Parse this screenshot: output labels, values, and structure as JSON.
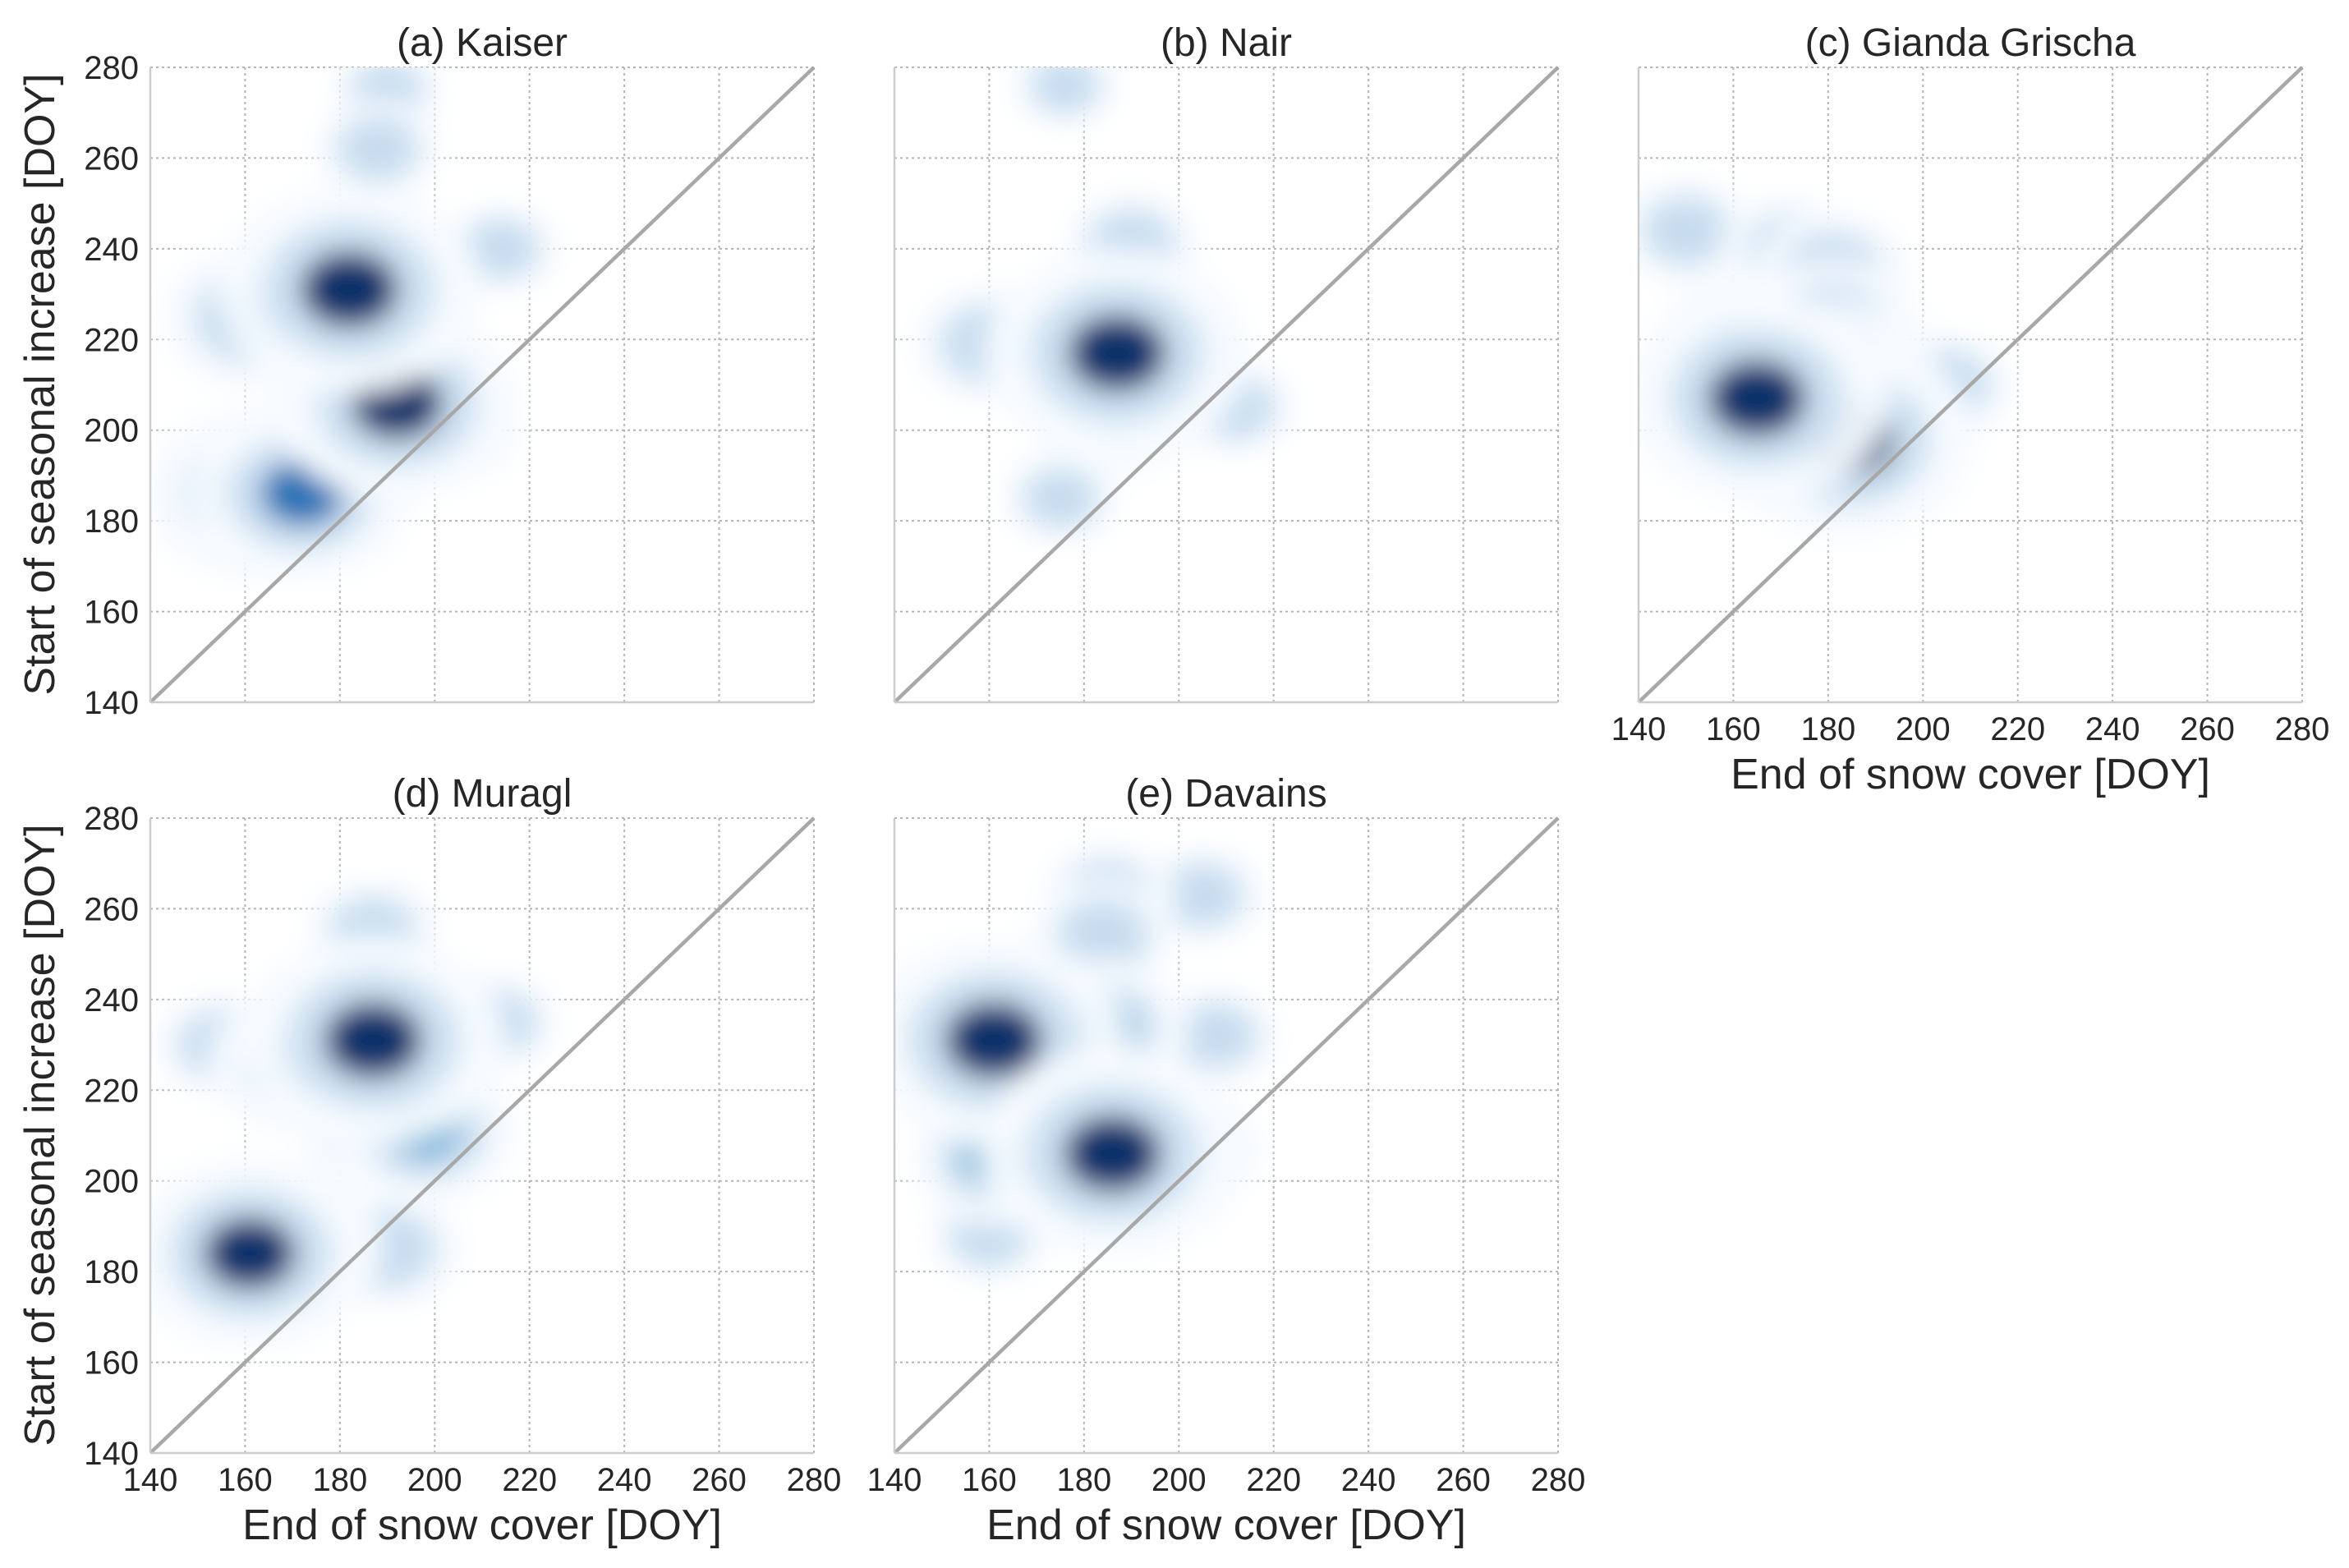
{
  "figure": {
    "x_label": "End of snow cover [DOY]",
    "y_label": "Start of seasonal increase [DOY]",
    "colormap": [
      "#f7fbff",
      "#c6dbef",
      "#6baed6",
      "#2171b5",
      "#08306b"
    ]
  },
  "chart_data": [
    {
      "type": "heatmap",
      "title": "(a) Kaiser",
      "xlabel": "End of snow cover [DOY]",
      "ylabel": "Start of seasonal increase [DOY]",
      "xlim": [
        140,
        280
      ],
      "ylim": [
        140,
        280
      ],
      "xticks": [
        140,
        160,
        180,
        200,
        220,
        240,
        260,
        280
      ],
      "yticks": [
        140,
        160,
        180,
        200,
        220,
        240,
        260,
        280
      ],
      "grid": true,
      "reference_line": "1:1",
      "density_blobs": [
        {
          "x": 182,
          "y": 231,
          "w": 1.0
        },
        {
          "x": 192,
          "y": 206,
          "w": 0.9
        },
        {
          "x": 162,
          "y": 186,
          "w": 0.75
        },
        {
          "x": 172,
          "y": 186,
          "w": 0.75
        },
        {
          "x": 162,
          "y": 225,
          "w": 0.55
        },
        {
          "x": 190,
          "y": 230,
          "w": 0.35
        },
        {
          "x": 188,
          "y": 262,
          "w": 0.2
        },
        {
          "x": 205,
          "y": 200,
          "w": 0.2
        },
        {
          "x": 214,
          "y": 240,
          "w": 0.15
        },
        {
          "x": 190,
          "y": 275,
          "w": 0.12
        }
      ]
    },
    {
      "type": "heatmap",
      "title": "(b) Nair",
      "xlabel": "End of snow cover [DOY]",
      "ylabel": "Start of seasonal increase [DOY]",
      "xlim": [
        140,
        280
      ],
      "ylim": [
        140,
        280
      ],
      "xticks": [
        140,
        160,
        180,
        200,
        220,
        240,
        260,
        280
      ],
      "yticks": [
        140,
        160,
        180,
        200,
        220,
        240,
        260,
        280
      ],
      "grid": true,
      "reference_line": "1:1",
      "density_blobs": [
        {
          "x": 187,
          "y": 217,
          "w": 1.0
        },
        {
          "x": 187,
          "y": 207,
          "w": 0.6
        },
        {
          "x": 160,
          "y": 219,
          "w": 0.35
        },
        {
          "x": 200,
          "y": 218,
          "w": 0.3
        },
        {
          "x": 190,
          "y": 241,
          "w": 0.25
        },
        {
          "x": 212,
          "y": 205,
          "w": 0.18
        },
        {
          "x": 175,
          "y": 185,
          "w": 0.15
        },
        {
          "x": 176,
          "y": 276,
          "w": 0.1
        }
      ]
    },
    {
      "type": "heatmap",
      "title": "(c) Gianda Grischa",
      "xlabel": "End of snow cover [DOY]",
      "ylabel": "Start of seasonal increase [DOY]",
      "xlim": [
        140,
        280
      ],
      "ylim": [
        140,
        280
      ],
      "xticks": [
        140,
        160,
        180,
        200,
        220,
        240,
        260,
        280
      ],
      "yticks": [
        140,
        160,
        180,
        200,
        220,
        240,
        260,
        280
      ],
      "grid": true,
      "reference_line": "1:1",
      "density_blobs": [
        {
          "x": 165,
          "y": 207,
          "w": 1.0
        },
        {
          "x": 184,
          "y": 198,
          "w": 0.95
        },
        {
          "x": 182,
          "y": 211,
          "w": 0.6
        },
        {
          "x": 181,
          "y": 222,
          "w": 0.5
        },
        {
          "x": 161,
          "y": 219,
          "w": 0.45
        },
        {
          "x": 181,
          "y": 235,
          "w": 0.35
        },
        {
          "x": 150,
          "y": 244,
          "w": 0.25
        },
        {
          "x": 205,
          "y": 210,
          "w": 0.25
        },
        {
          "x": 172,
          "y": 240,
          "w": 0.25
        }
      ]
    },
    {
      "type": "heatmap",
      "title": "(d) Muragl",
      "xlabel": "End of snow cover [DOY]",
      "ylabel": "Start of seasonal increase [DOY]",
      "xlim": [
        140,
        280
      ],
      "ylim": [
        140,
        280
      ],
      "xticks": [
        140,
        160,
        180,
        200,
        220,
        240,
        260,
        280
      ],
      "yticks": [
        140,
        160,
        180,
        200,
        220,
        240,
        260,
        280
      ],
      "grid": true,
      "reference_line": "1:1",
      "density_blobs": [
        {
          "x": 187,
          "y": 231,
          "w": 1.0
        },
        {
          "x": 161,
          "y": 184,
          "w": 0.9
        },
        {
          "x": 172,
          "y": 226,
          "w": 0.55
        },
        {
          "x": 198,
          "y": 211,
          "w": 0.55
        },
        {
          "x": 172,
          "y": 186,
          "w": 0.4
        },
        {
          "x": 190,
          "y": 185,
          "w": 0.35
        },
        {
          "x": 187,
          "y": 255,
          "w": 0.25
        },
        {
          "x": 155,
          "y": 230,
          "w": 0.25
        },
        {
          "x": 213,
          "y": 235,
          "w": 0.2
        },
        {
          "x": 187,
          "y": 210,
          "w": 0.3
        }
      ]
    },
    {
      "type": "heatmap",
      "title": "(e) Davains",
      "xlabel": "End of snow cover [DOY]",
      "ylabel": "Start of seasonal increase [DOY]",
      "xlim": [
        140,
        280
      ],
      "ylim": [
        140,
        280
      ],
      "xticks": [
        140,
        160,
        180,
        200,
        220,
        240,
        260,
        280
      ],
      "yticks": [
        140,
        160,
        180,
        200,
        220,
        240,
        260,
        280
      ],
      "grid": true,
      "reference_line": "1:1",
      "density_blobs": [
        {
          "x": 161,
          "y": 231,
          "w": 1.0
        },
        {
          "x": 186,
          "y": 206,
          "w": 1.0
        },
        {
          "x": 161,
          "y": 205,
          "w": 0.45
        },
        {
          "x": 184,
          "y": 234,
          "w": 0.45
        },
        {
          "x": 184,
          "y": 254,
          "w": 0.3
        },
        {
          "x": 185,
          "y": 263,
          "w": 0.25
        },
        {
          "x": 205,
          "y": 263,
          "w": 0.2
        },
        {
          "x": 208,
          "y": 232,
          "w": 0.2
        },
        {
          "x": 160,
          "y": 188,
          "w": 0.18
        },
        {
          "x": 205,
          "y": 207,
          "w": 0.2
        }
      ]
    }
  ]
}
